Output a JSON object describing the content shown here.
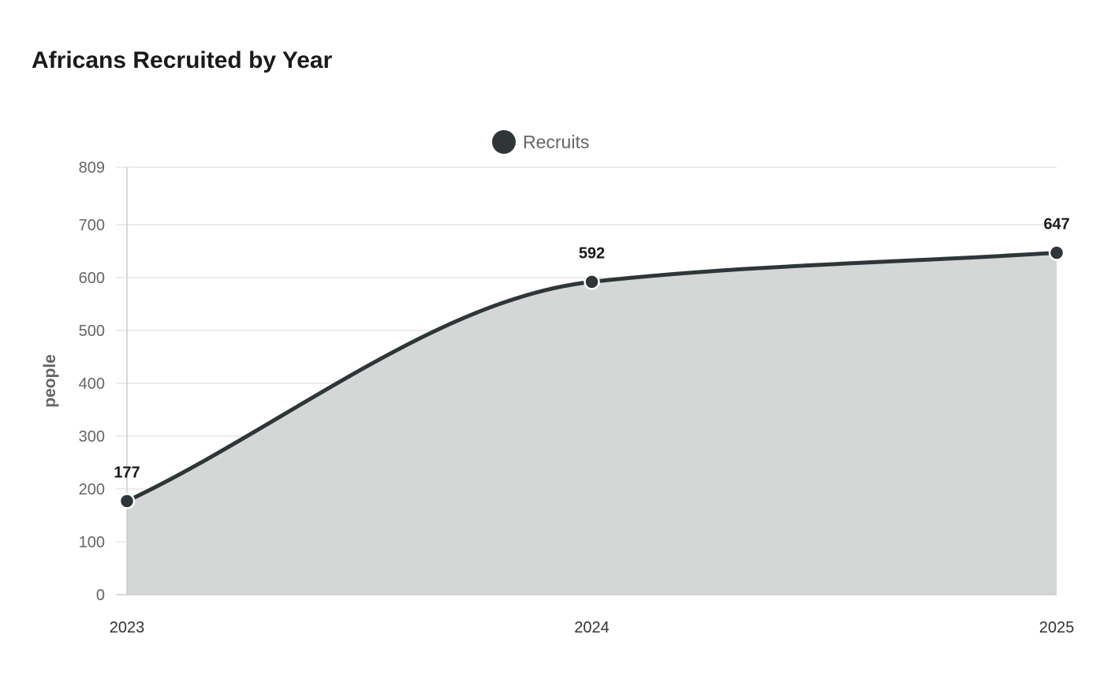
{
  "chart_data": {
    "type": "area",
    "title": "Africans Recruited by Year",
    "xlabel": "",
    "ylabel": "people",
    "categories": [
      "2023",
      "2024",
      "2025"
    ],
    "series": [
      {
        "name": "Recruits",
        "values": [
          177,
          592,
          647
        ]
      }
    ],
    "ylim": [
      0,
      809
    ],
    "yticks": [
      0,
      100,
      200,
      300,
      400,
      500,
      600,
      700,
      809
    ],
    "grid": true,
    "legend": "top-center",
    "colors": {
      "line": "#2e3638",
      "fill": "#d5d7d6",
      "grid": "#e6e6e6",
      "axis": "#cccccc",
      "tick_label": "#666666",
      "x_tick_label": "#333333",
      "data_label": "#1a1a1a"
    }
  }
}
